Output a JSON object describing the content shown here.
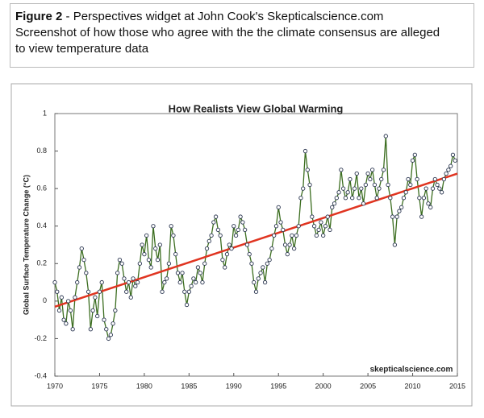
{
  "caption": {
    "label": "Figure 2",
    "lines": [
      " - Perspectives widget at  John Cook's  Skepticalscience.com",
      "Screenshot of how those who agree with the the climate consensus  are alleged",
      "to view temperature data"
    ]
  },
  "chart_data": {
    "type": "line",
    "title": "How Realists View Global Warming",
    "ylabel": "Global Surface Temperature Change (°C)",
    "watermark": "skepticalscience.com",
    "xlim": [
      1970,
      2015
    ],
    "xticks": [
      1970,
      1975,
      1980,
      1985,
      1990,
      1995,
      2000,
      2005,
      2010,
      2015
    ],
    "ylim": [
      -0.4,
      1
    ],
    "yticks": [
      -0.4,
      -0.2,
      0,
      0.2,
      0.4,
      0.6,
      0.8,
      1
    ],
    "x": [
      1970,
      1970.25,
      1970.5,
      1970.75,
      1971,
      1971.25,
      1971.5,
      1971.75,
      1972,
      1972.25,
      1972.5,
      1972.75,
      1973,
      1973.25,
      1973.5,
      1973.75,
      1974,
      1974.25,
      1974.5,
      1974.75,
      1975,
      1975.25,
      1975.5,
      1975.75,
      1976,
      1976.25,
      1976.5,
      1976.75,
      1977,
      1977.25,
      1977.5,
      1977.75,
      1978,
      1978.25,
      1978.5,
      1978.75,
      1979,
      1979.25,
      1979.5,
      1979.75,
      1980,
      1980.25,
      1980.5,
      1980.75,
      1981,
      1981.25,
      1981.5,
      1981.75,
      1982,
      1982.25,
      1982.5,
      1982.75,
      1983,
      1983.25,
      1983.5,
      1983.75,
      1984,
      1984.25,
      1984.5,
      1984.75,
      1985,
      1985.25,
      1985.5,
      1985.75,
      1986,
      1986.25,
      1986.5,
      1986.75,
      1987,
      1987.25,
      1987.5,
      1987.75,
      1988,
      1988.25,
      1988.5,
      1988.75,
      1989,
      1989.25,
      1989.5,
      1989.75,
      1990,
      1990.25,
      1990.5,
      1990.75,
      1991,
      1991.25,
      1991.5,
      1991.75,
      1992,
      1992.25,
      1992.5,
      1992.75,
      1993,
      1993.25,
      1993.5,
      1993.75,
      1994,
      1994.25,
      1994.5,
      1994.75,
      1995,
      1995.25,
      1995.5,
      1995.75,
      1996,
      1996.25,
      1996.5,
      1996.75,
      1997,
      1997.25,
      1997.5,
      1997.75,
      1998,
      1998.25,
      1998.5,
      1998.75,
      1999,
      1999.25,
      1999.5,
      1999.75,
      2000,
      2000.25,
      2000.5,
      2000.75,
      2001,
      2001.25,
      2001.5,
      2001.75,
      2002,
      2002.25,
      2002.5,
      2002.75,
      2003,
      2003.25,
      2003.5,
      2003.75,
      2004,
      2004.25,
      2004.5,
      2004.75,
      2005,
      2005.25,
      2005.5,
      2005.75,
      2006,
      2006.25,
      2006.5,
      2006.75,
      2007,
      2007.25,
      2007.5,
      2007.75,
      2008,
      2008.25,
      2008.5,
      2008.75,
      2009,
      2009.25,
      2009.5,
      2009.75,
      2010,
      2010.25,
      2010.5,
      2010.75,
      2011,
      2011.25,
      2011.5,
      2011.75,
      2012,
      2012.25,
      2012.5,
      2012.75,
      2013,
      2013.25,
      2013.5,
      2013.75,
      2014,
      2014.25,
      2014.5,
      2014.75
    ],
    "series": [
      {
        "color": "#3b6d1f",
        "values": [
          0.1,
          0.05,
          -0.05,
          0.02,
          -0.1,
          -0.12,
          0.0,
          -0.05,
          -0.15,
          0.02,
          0.1,
          0.18,
          0.28,
          0.22,
          0.15,
          0.05,
          -0.15,
          -0.05,
          0.02,
          -0.08,
          0.05,
          0.1,
          -0.1,
          -0.15,
          -0.2,
          -0.18,
          -0.12,
          -0.05,
          0.15,
          0.22,
          0.2,
          0.12,
          0.05,
          0.1,
          0.02,
          0.12,
          0.08,
          0.1,
          0.2,
          0.3,
          0.25,
          0.35,
          0.22,
          0.18,
          0.4,
          0.28,
          0.22,
          0.3,
          0.05,
          0.1,
          0.12,
          0.2,
          0.4,
          0.35,
          0.25,
          0.15,
          0.1,
          0.15,
          0.05,
          -0.02,
          0.05,
          0.08,
          0.12,
          0.1,
          0.18,
          0.15,
          0.1,
          0.2,
          0.28,
          0.32,
          0.35,
          0.42,
          0.45,
          0.38,
          0.35,
          0.22,
          0.18,
          0.25,
          0.3,
          0.28,
          0.4,
          0.35,
          0.38,
          0.45,
          0.42,
          0.38,
          0.3,
          0.25,
          0.2,
          0.1,
          0.05,
          0.12,
          0.15,
          0.18,
          0.1,
          0.2,
          0.22,
          0.28,
          0.35,
          0.4,
          0.5,
          0.42,
          0.38,
          0.3,
          0.25,
          0.3,
          0.35,
          0.28,
          0.35,
          0.4,
          0.55,
          0.6,
          0.8,
          0.7,
          0.62,
          0.45,
          0.4,
          0.35,
          0.38,
          0.42,
          0.35,
          0.4,
          0.45,
          0.38,
          0.5,
          0.52,
          0.55,
          0.58,
          0.7,
          0.6,
          0.55,
          0.58,
          0.65,
          0.55,
          0.6,
          0.68,
          0.55,
          0.6,
          0.52,
          0.62,
          0.68,
          0.65,
          0.7,
          0.62,
          0.55,
          0.6,
          0.65,
          0.7,
          0.88,
          0.62,
          0.55,
          0.45,
          0.3,
          0.45,
          0.48,
          0.5,
          0.55,
          0.58,
          0.65,
          0.62,
          0.75,
          0.78,
          0.65,
          0.55,
          0.45,
          0.55,
          0.6,
          0.52,
          0.5,
          0.6,
          0.65,
          0.62,
          0.6,
          0.58,
          0.65,
          0.68,
          0.7,
          0.72,
          0.78,
          0.75
        ]
      }
    ],
    "trend": {
      "color": "#e03420",
      "x": [
        1970,
        2015
      ],
      "values": [
        -0.03,
        0.68
      ]
    }
  }
}
